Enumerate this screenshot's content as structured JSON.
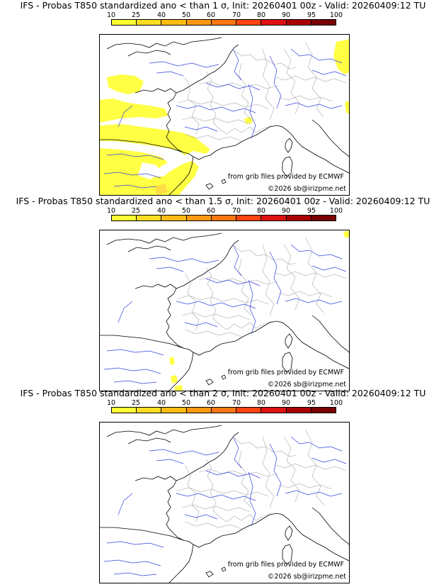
{
  "colors": {
    "scale": [
      "#ffff33",
      "#ffdd22",
      "#ffbb11",
      "#ff9911",
      "#ff7711",
      "#ff4411",
      "#dd1111",
      "#aa0000",
      "#7a0000",
      "#4a0000"
    ],
    "prob_fill_low": "#ffff44",
    "prob_fill_mid": "#ffdd44",
    "coast": "#000000",
    "river": "#3344dd",
    "border": "#aaaaaa"
  },
  "colorbar": {
    "labels": [
      "10",
      "25",
      "40",
      "50",
      "60",
      "70",
      "80",
      "90",
      "95",
      "100"
    ]
  },
  "panels": [
    {
      "title": "IFS - Probas T850  standardized ano < than 1 σ, Init: 20260401 00z - Valid: 20260409:12 TU",
      "credit_source": "from grib files provided by ECMWF",
      "credit_copyright": "©2026 sb@irizpme.net"
    },
    {
      "title": "IFS - Probas T850  standardized ano < than 1.5 σ, Init: 20260401 00z - Valid: 20260409:12 TU",
      "credit_source": "from grib files provided by ECMWF",
      "credit_copyright": "©2026 sb@irizpme.net"
    },
    {
      "title": "IFS - Probas T850  standardized ano < than 2 σ, Init: 20260401 00z - Valid: 20260409:12 TU",
      "credit_source": "from grib files provided by ECMWF",
      "credit_copyright": "©2026 sb@irizpme.net"
    }
  ]
}
